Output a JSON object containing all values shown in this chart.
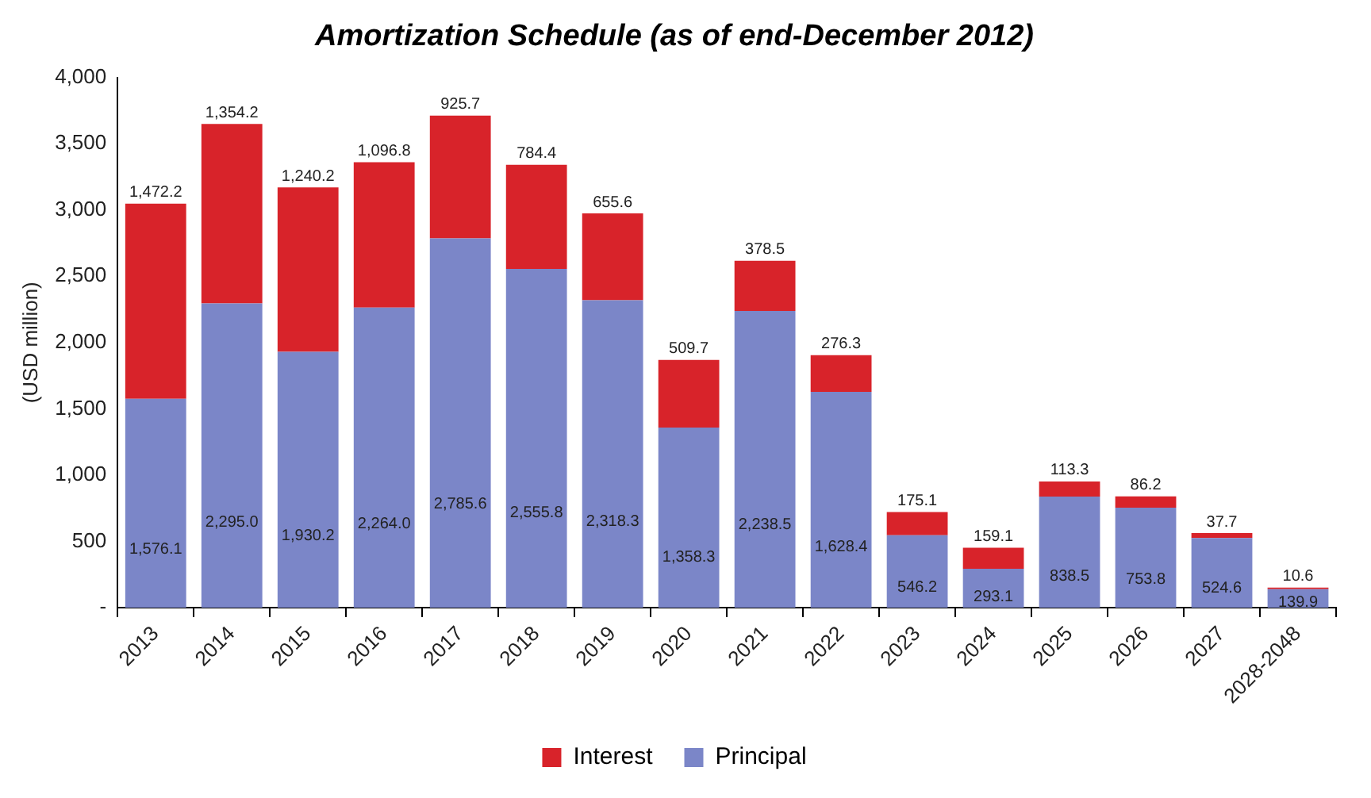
{
  "chart_data": {
    "type": "bar",
    "title": "Amortization Schedule (as of end-December 2012)",
    "ylabel": "(USD million)",
    "categories": [
      "2013",
      "2014",
      "2015",
      "2016",
      "2017",
      "2018",
      "2019",
      "2020",
      "2021",
      "2022",
      "2023",
      "2024",
      "2025",
      "2026",
      "2027",
      "2028-2048"
    ],
    "stacked": true,
    "series": [
      {
        "name": "Principal",
        "color": "#7b86c8",
        "values": [
          1576.1,
          2295.0,
          1930.2,
          2264.0,
          2785.6,
          2555.8,
          2318.3,
          1358.3,
          2238.5,
          1628.4,
          546.2,
          293.1,
          838.5,
          753.8,
          524.6,
          139.9
        ],
        "value_labels": [
          "1,576.1",
          "2,295.0",
          "1,930.2",
          "2,264.0",
          "2,785.6",
          "2,555.8",
          "2,318.3",
          "1,358.3",
          "2,238.5",
          "1,628.4",
          "546.2",
          "293.1",
          "838.5",
          "753.8",
          "524.6",
          "139.9"
        ]
      },
      {
        "name": "Interest",
        "color": "#d8232a",
        "values": [
          1472.2,
          1354.2,
          1240.2,
          1096.8,
          925.7,
          784.4,
          655.6,
          509.7,
          378.5,
          276.3,
          175.1,
          159.1,
          113.3,
          86.2,
          37.7,
          10.6
        ],
        "value_labels": [
          "1,472.2",
          "1,354.2",
          "1,240.2",
          "1,096.8",
          "925.7",
          "784.4",
          "655.6",
          "509.7",
          "378.5",
          "276.3",
          "175.1",
          "159.1",
          "113.3",
          "86.2",
          "37.7",
          "10.6"
        ]
      }
    ],
    "ylim": [
      0,
      4000
    ],
    "yticks": [
      {
        "value": 0,
        "label": "-"
      },
      {
        "value": 500,
        "label": "500"
      },
      {
        "value": 1000,
        "label": "1,000"
      },
      {
        "value": 1500,
        "label": "1,500"
      },
      {
        "value": 2000,
        "label": "2,000"
      },
      {
        "value": 2500,
        "label": "2,500"
      },
      {
        "value": 3000,
        "label": "3,000"
      },
      {
        "value": 3500,
        "label": "3,500"
      },
      {
        "value": 4000,
        "label": "4,000"
      }
    ],
    "grid": false,
    "legend": "bottom"
  }
}
